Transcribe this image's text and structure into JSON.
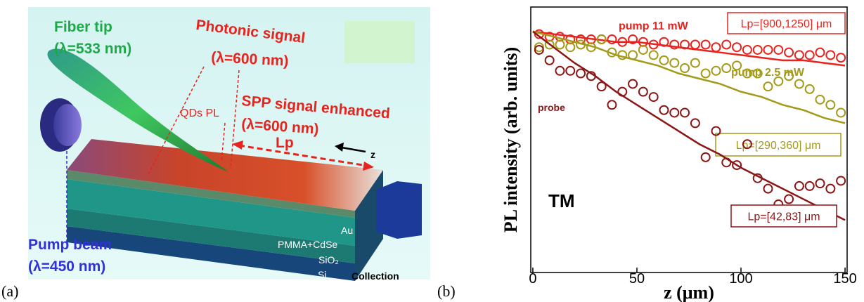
{
  "panel_a": {
    "label": "(a)",
    "fiber_tip": "Fiber tip",
    "fiber_wavelength": "(λ=533 nm)",
    "photonic_signal": "Photonic signal",
    "photonic_wavelength": "(λ=600 nm)",
    "qds_pl": "QDs PL",
    "spp_signal": "SPP signal enhanced",
    "spp_wavelength": "(λ=600 nm)",
    "lp": "Lp",
    "z": "z",
    "layers": [
      "Au",
      "PMMA+CdSe",
      "SiO₂",
      "Si"
    ],
    "collection": "Collection",
    "pump_beam": "Pump beam",
    "pump_wavelength": "(λ=450 nm)"
  },
  "chart_data": {
    "type": "scatter",
    "label": "(b)",
    "y_label": "PL intensity (arb. units)",
    "x_label": "z (μm)",
    "xlim": [
      -1,
      151
    ],
    "ylim": [
      0,
      1
    ],
    "xticks": [
      0,
      50,
      100,
      150
    ],
    "annotation": "TM",
    "series": [
      {
        "name": "pump 11 mW",
        "color": "#e8231e",
        "box_label": "Lp=[900,1250] μm",
        "x": [
          3,
          8,
          13,
          18,
          23,
          28,
          33,
          38,
          43,
          48,
          53,
          58,
          63,
          68,
          73,
          78,
          83,
          88,
          93,
          98,
          103,
          108,
          113,
          118,
          123,
          128,
          133,
          138,
          143,
          148
        ],
        "values": [
          0.91,
          0.9,
          0.9,
          0.89,
          0.89,
          0.89,
          0.89,
          0.89,
          0.88,
          0.89,
          0.88,
          0.87,
          0.88,
          0.87,
          0.87,
          0.87,
          0.87,
          0.86,
          0.87,
          0.86,
          0.85,
          0.85,
          0.85,
          0.85,
          0.84,
          0.83,
          0.83,
          0.84,
          0.83,
          0.82
        ],
        "fit": {
          "x": [
            0,
            10,
            20,
            30,
            40,
            50,
            60,
            70,
            80,
            90,
            100,
            110,
            120,
            130,
            140,
            150
          ],
          "values": [
            0.92,
            0.91,
            0.9,
            0.89,
            0.88,
            0.88,
            0.87,
            0.86,
            0.85,
            0.84,
            0.83,
            0.82,
            0.81,
            0.81,
            0.8,
            0.79
          ]
        }
      },
      {
        "name": "pump 2.5 mW",
        "color": "#a39a18",
        "box_label": "Lp=[290,360] μm",
        "x": [
          3,
          8,
          13,
          18,
          23,
          28,
          33,
          38,
          43,
          48,
          53,
          58,
          63,
          68,
          73,
          78,
          83,
          88,
          93,
          98,
          103,
          108,
          113,
          118,
          123,
          128,
          133,
          138,
          143,
          148
        ],
        "values": [
          0.86,
          0.87,
          0.87,
          0.86,
          0.87,
          0.86,
          0.89,
          0.84,
          0.83,
          0.83,
          0.85,
          0.83,
          0.81,
          0.8,
          0.78,
          0.8,
          0.76,
          0.77,
          0.78,
          0.79,
          0.76,
          0.76,
          0.71,
          0.73,
          0.75,
          0.72,
          0.7,
          0.66,
          0.64,
          0.61
        ],
        "fit": {
          "x": [
            0,
            10,
            20,
            30,
            40,
            50,
            60,
            70,
            80,
            90,
            100,
            110,
            120,
            130,
            140,
            150
          ],
          "values": [
            0.92,
            0.9,
            0.88,
            0.86,
            0.83,
            0.81,
            0.79,
            0.76,
            0.74,
            0.72,
            0.69,
            0.67,
            0.64,
            0.62,
            0.59,
            0.57
          ]
        }
      },
      {
        "name": "probe",
        "color": "#8b1616",
        "box_label": "Lp=[42,83] μm",
        "x": [
          3,
          8,
          13,
          18,
          23,
          28,
          33,
          38,
          43,
          48,
          53,
          58,
          63,
          68,
          73,
          78,
          83,
          88,
          93,
          98,
          103,
          108,
          113,
          118,
          123,
          128,
          133,
          138,
          143,
          148
        ],
        "values": [
          0.85,
          0.81,
          0.77,
          0.77,
          0.76,
          0.75,
          0.71,
          0.64,
          0.69,
          0.72,
          0.69,
          0.67,
          0.62,
          0.61,
          0.61,
          0.57,
          0.44,
          0.54,
          0.42,
          0.41,
          0.49,
          0.36,
          0.32,
          0.26,
          0.28,
          0.33,
          0.33,
          0.34,
          0.32,
          0.35
        ],
        "fit": {
          "x": [
            0,
            10,
            20,
            30,
            40,
            50,
            60,
            70,
            80,
            90,
            100,
            110,
            120,
            130,
            140,
            150
          ],
          "values": [
            0.92,
            0.86,
            0.8,
            0.75,
            0.69,
            0.64,
            0.59,
            0.54,
            0.49,
            0.45,
            0.4,
            0.36,
            0.32,
            0.28,
            0.24,
            0.2
          ]
        }
      }
    ]
  }
}
